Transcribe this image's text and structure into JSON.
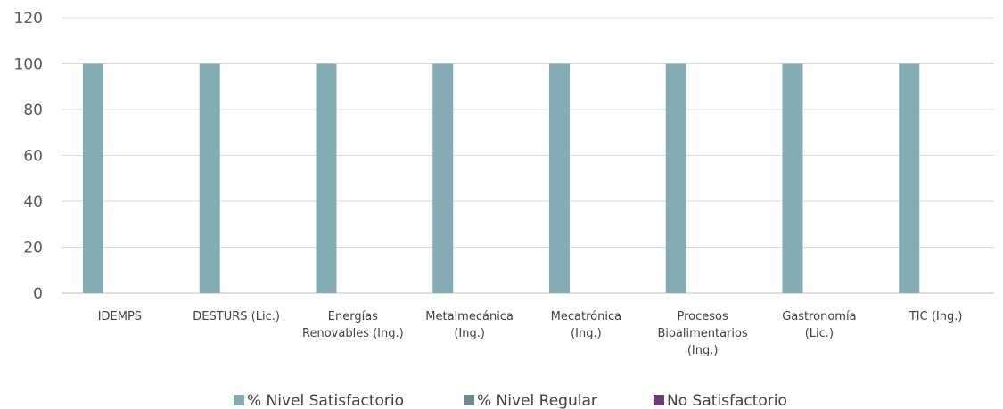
{
  "chart_data": {
    "type": "bar",
    "categories": [
      [
        "IDEMPS"
      ],
      [
        "DESTURS  (Lic.)"
      ],
      [
        "Energías",
        "Renovables (Ing.)"
      ],
      [
        "Metalmecánica",
        "(Ing.)"
      ],
      [
        "Mecatrónica",
        "(Ing.)"
      ],
      [
        "Procesos",
        "Bioalimentarios",
        "(Ing.)"
      ],
      [
        "Gastronomía",
        "(Lic.)"
      ],
      [
        "TIC (Ing.)"
      ]
    ],
    "series": [
      {
        "name": "% Nivel Satisfactorio",
        "color": "#84acb6",
        "values": [
          100,
          100,
          100,
          100,
          100,
          100,
          100,
          100
        ]
      },
      {
        "name": "% Nivel Regular",
        "color": "#6f8a8f",
        "values": [
          0,
          0,
          0,
          0,
          0,
          0,
          0,
          0
        ]
      },
      {
        "name": "No Satisfactorio",
        "color": "#6b3d7a",
        "values": [
          0,
          0,
          0,
          0,
          0,
          0,
          0,
          0
        ]
      }
    ],
    "yticks": [
      "0",
      "20",
      "40",
      "60",
      "80",
      "100",
      "120"
    ],
    "ylim": [
      0,
      120
    ],
    "grid": true,
    "legend_position": "bottom"
  }
}
